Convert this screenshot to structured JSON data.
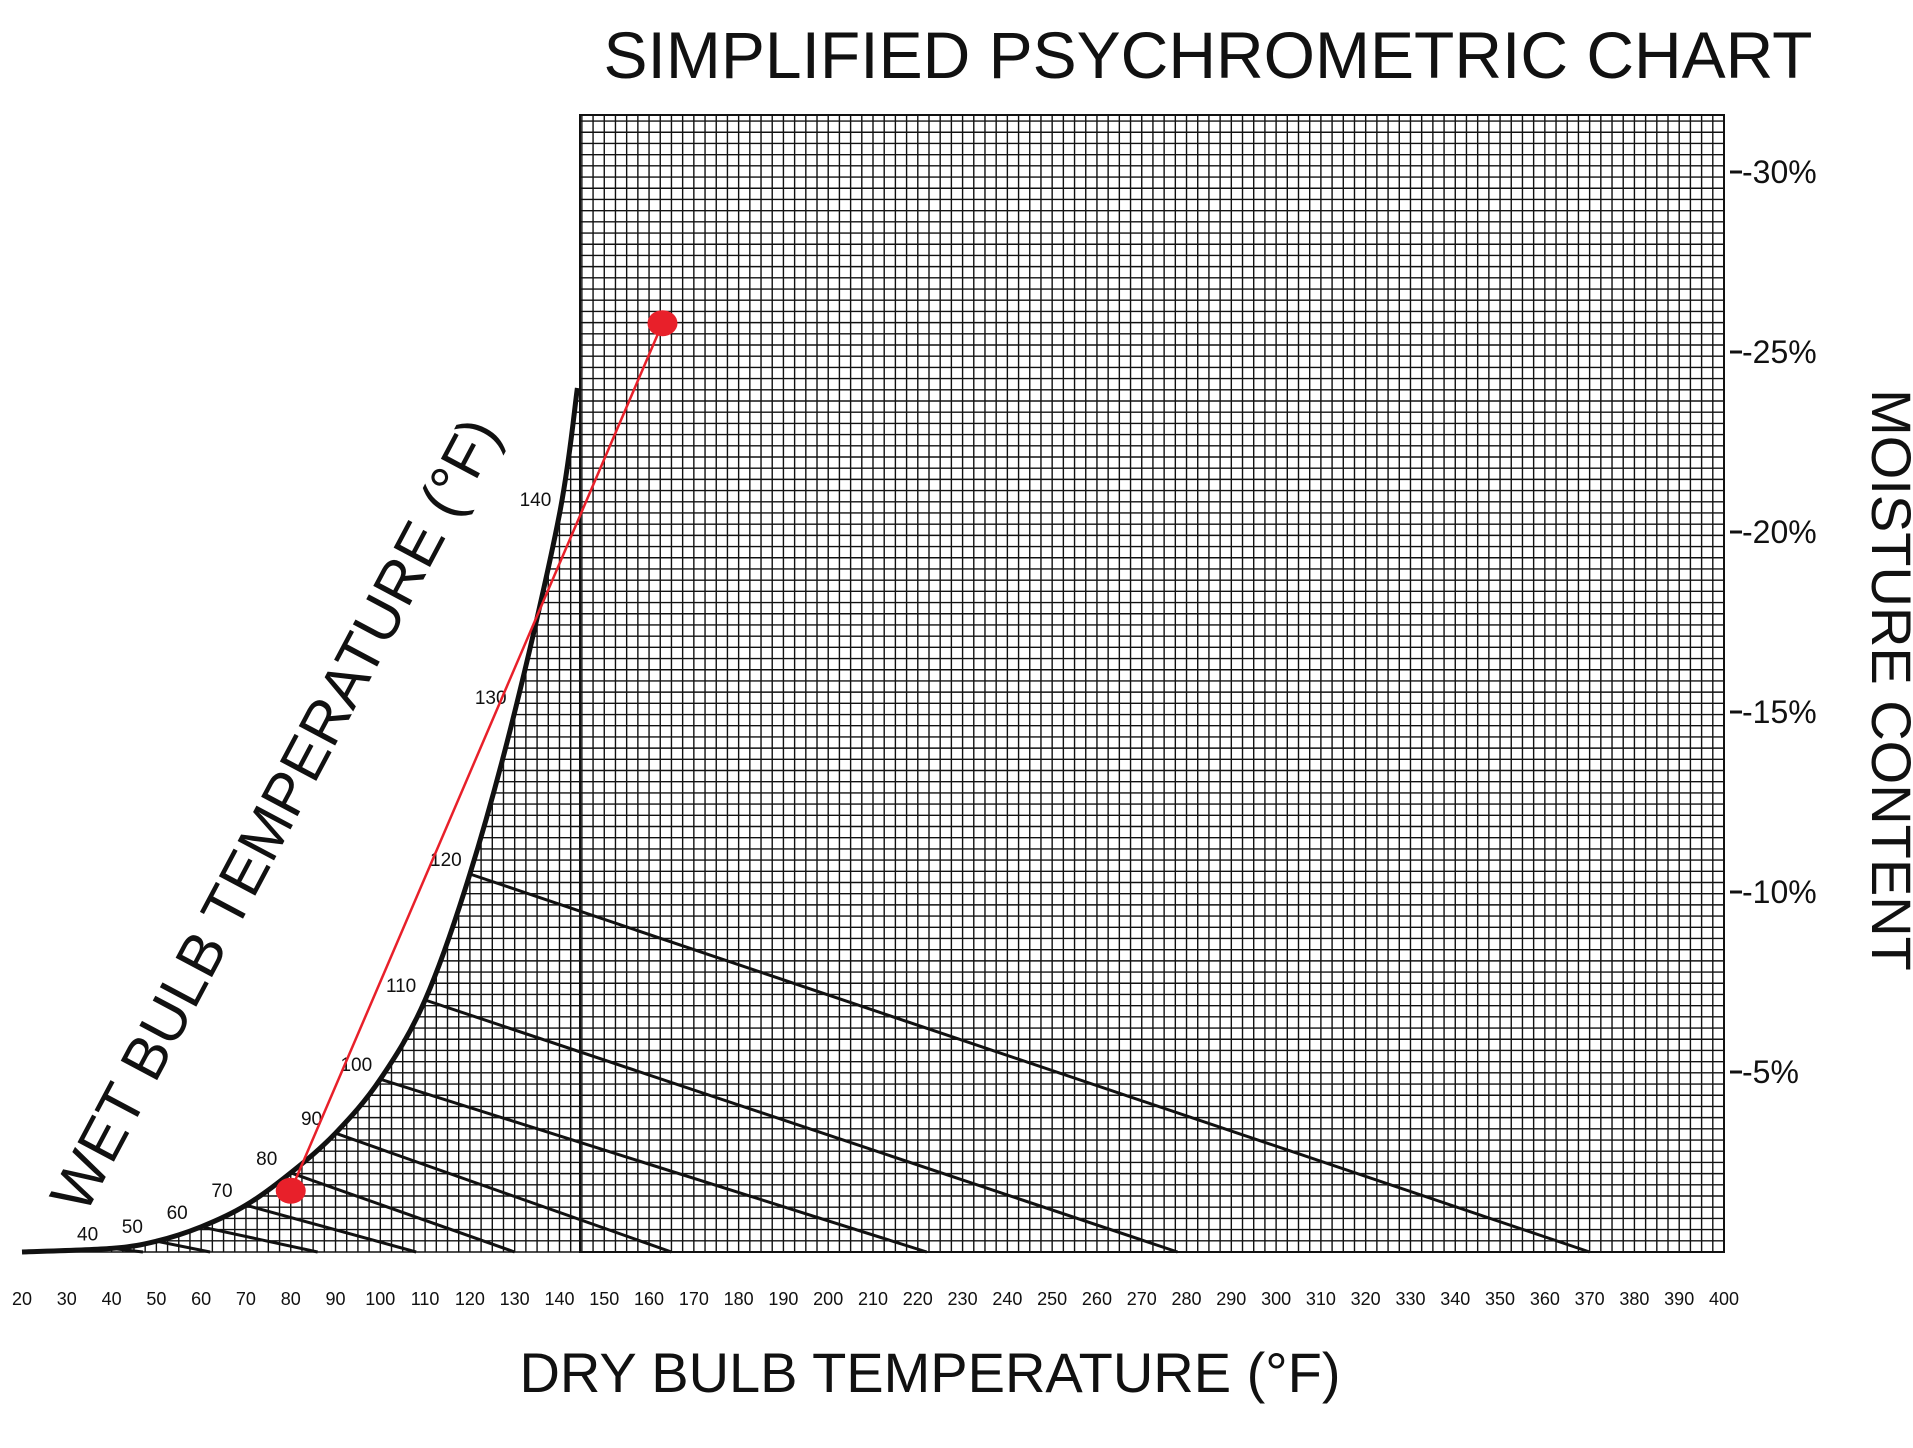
{
  "chart_data": {
    "type": "line",
    "title": "SIMPLIFIED PSYCHROMETRIC CHART",
    "xlabel": "DRY BULB TEMPERATURE (°F)",
    "ylabel": "MOISTURE CONTENT",
    "curve_label": "WET BULB TEMPERATURE (°F)",
    "xlim": [
      20,
      400
    ],
    "ylim": [
      0,
      32
    ],
    "x_ticks": [
      "20",
      "30",
      "40",
      "50",
      "60",
      "70",
      "80",
      "90",
      "100",
      "110",
      "120",
      "130",
      "140",
      "150",
      "160",
      "170",
      "180",
      "190",
      "200",
      "210",
      "220",
      "230",
      "240",
      "250",
      "260",
      "270",
      "280",
      "290",
      "300",
      "310",
      "320",
      "330",
      "340",
      "350",
      "360",
      "370",
      "380",
      "390",
      "400"
    ],
    "y_ticks": [
      {
        "value": 5,
        "label": "-5%"
      },
      {
        "value": 10,
        "label": "-10%"
      },
      {
        "value": 15,
        "label": "-15%"
      },
      {
        "value": 20,
        "label": "-20%"
      },
      {
        "value": 25,
        "label": "-25%"
      },
      {
        "value": 30,
        "label": "-30%"
      }
    ],
    "grid": true,
    "saturation_curve": [
      {
        "x": 20,
        "y": 0.0
      },
      {
        "x": 40,
        "y": 0.1
      },
      {
        "x": 50,
        "y": 0.3
      },
      {
        "x": 60,
        "y": 0.7
      },
      {
        "x": 70,
        "y": 1.3
      },
      {
        "x": 80,
        "y": 2.2
      },
      {
        "x": 90,
        "y": 3.3
      },
      {
        "x": 100,
        "y": 4.8
      },
      {
        "x": 110,
        "y": 7.0
      },
      {
        "x": 120,
        "y": 10.5
      },
      {
        "x": 130,
        "y": 15.0
      },
      {
        "x": 140,
        "y": 20.5
      },
      {
        "x": 144,
        "y": 24.0
      }
    ],
    "wet_bulb_labels": [
      {
        "label": "40",
        "x": 40,
        "y": 0.1
      },
      {
        "label": "50",
        "x": 50,
        "y": 0.3
      },
      {
        "label": "60",
        "x": 60,
        "y": 0.7
      },
      {
        "label": "70",
        "x": 70,
        "y": 1.3
      },
      {
        "label": "80",
        "x": 80,
        "y": 2.2
      },
      {
        "label": "90",
        "x": 90,
        "y": 3.3
      },
      {
        "label": "100",
        "x": 100,
        "y": 4.8
      },
      {
        "label": "110",
        "x": 110,
        "y": 7.0
      },
      {
        "label": "120",
        "x": 120,
        "y": 10.5
      },
      {
        "label": "130",
        "x": 130,
        "y": 15.0
      },
      {
        "label": "140",
        "x": 140,
        "y": 20.5
      }
    ],
    "wet_bulb_lines": [
      {
        "wb": 40,
        "x1": 40,
        "y1": 0.1,
        "x2": 47,
        "y2": 0.0
      },
      {
        "wb": 50,
        "x1": 50,
        "y1": 0.3,
        "x2": 62,
        "y2": 0.0
      },
      {
        "wb": 60,
        "x1": 60,
        "y1": 0.7,
        "x2": 86,
        "y2": 0.0
      },
      {
        "wb": 70,
        "x1": 70,
        "y1": 1.3,
        "x2": 108,
        "y2": 0.0
      },
      {
        "wb": 80,
        "x1": 80,
        "y1": 2.2,
        "x2": 130,
        "y2": 0.0
      },
      {
        "wb": 90,
        "x1": 90,
        "y1": 3.3,
        "x2": 165,
        "y2": 0.0
      },
      {
        "wb": 100,
        "x1": 100,
        "y1": 4.8,
        "x2": 222,
        "y2": 0.0
      },
      {
        "wb": 110,
        "x1": 110,
        "y1": 7.0,
        "x2": 278,
        "y2": 0.0
      },
      {
        "wb": 120,
        "x1": 120,
        "y1": 10.5,
        "x2": 370,
        "y2": 0.0
      }
    ],
    "marked_points": [
      {
        "x": 80,
        "y": 1.7
      },
      {
        "x": 163,
        "y": 25.8
      }
    ],
    "colors": {
      "curve": "#111111",
      "grid": "#111111",
      "marker": "#e8202a"
    }
  }
}
